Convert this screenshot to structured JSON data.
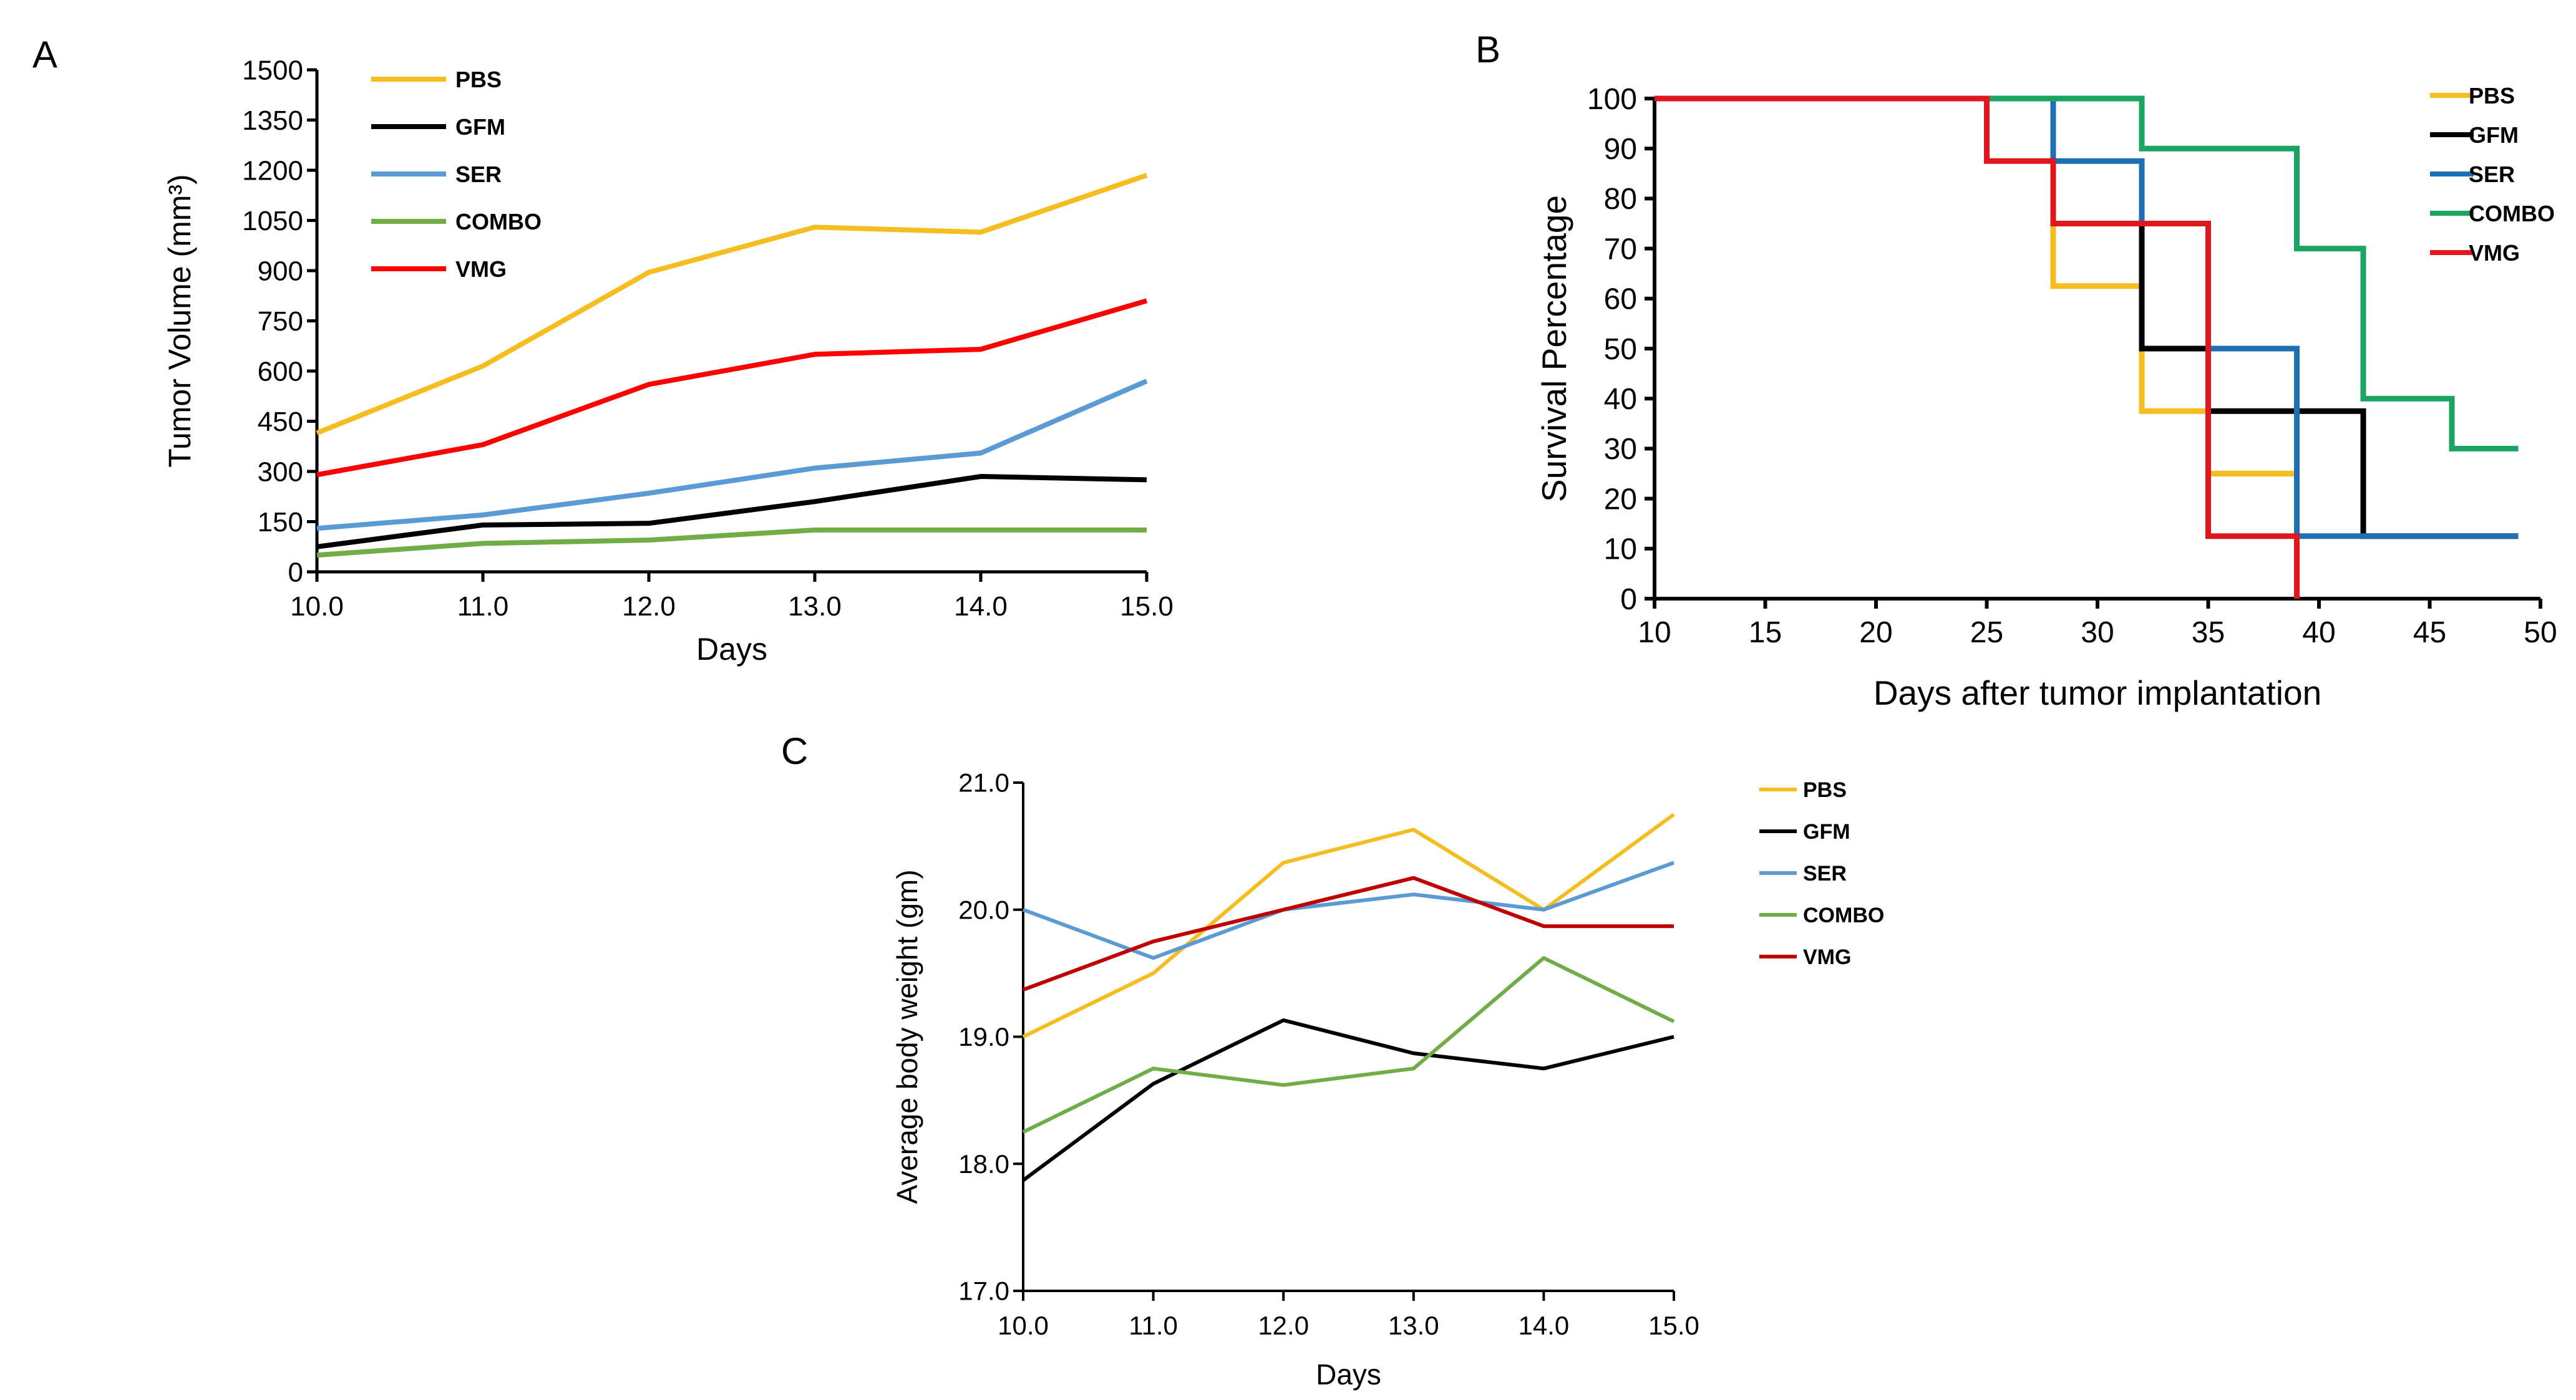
{
  "chart_data": [
    {
      "panel": "A",
      "type": "line",
      "xlabel": "Days",
      "ylabel": "Tumor Volume (mm³)",
      "xlim": [
        10,
        15
      ],
      "ylim": [
        0,
        1500
      ],
      "x_ticks": [
        "10.0",
        "11.0",
        "12.0",
        "13.0",
        "14.0",
        "15.0"
      ],
      "y_ticks": [
        "0",
        "150",
        "300",
        "450",
        "600",
        "750",
        "900",
        "1050",
        "1200",
        "1350",
        "1500"
      ],
      "x": [
        10,
        11,
        12,
        13,
        14,
        15
      ],
      "legend_position": "top-left",
      "grid": false,
      "series": [
        {
          "name": "PBS",
          "color": "#F5BD1F",
          "values": [
            415,
            615,
            895,
            1030,
            1015,
            1185
          ]
        },
        {
          "name": "GFM",
          "color": "#000000",
          "values": [
            75,
            140,
            145,
            210,
            285,
            275
          ]
        },
        {
          "name": "SER",
          "color": "#5B9BD5",
          "values": [
            130,
            170,
            235,
            310,
            355,
            570
          ]
        },
        {
          "name": "COMBO",
          "color": "#70AD47",
          "values": [
            50,
            85,
            95,
            125,
            125,
            125
          ]
        },
        {
          "name": "VMG",
          "color": "#FF0000",
          "values": [
            290,
            380,
            560,
            650,
            665,
            810
          ]
        }
      ]
    },
    {
      "panel": "B",
      "type": "line",
      "step": true,
      "xlabel": "Days after tumor implantation",
      "ylabel": "Survival Percentage",
      "xlim": [
        10,
        50
      ],
      "ylim": [
        0,
        100
      ],
      "x_ticks": [
        "10",
        "15",
        "20",
        "25",
        "30",
        "35",
        "40",
        "45",
        "50"
      ],
      "y_ticks": [
        "0",
        "10",
        "20",
        "30",
        "40",
        "50",
        "60",
        "70",
        "80",
        "90",
        "100"
      ],
      "legend_position": "top-right",
      "grid": false,
      "series": [
        {
          "name": "PBS",
          "color": "#F5BD1F",
          "x": [
            10,
            28,
            32,
            35,
            39
          ],
          "values": [
            100,
            62.5,
            37.5,
            25,
            0
          ]
        },
        {
          "name": "GFM",
          "color": "#000000",
          "x": [
            10,
            28,
            32,
            35,
            42,
            49
          ],
          "values": [
            100,
            75,
            50,
            37.5,
            12.5,
            12.5
          ]
        },
        {
          "name": "SER",
          "color": "#1F6FB5",
          "x": [
            10,
            28,
            32,
            35,
            39,
            49
          ],
          "values": [
            100,
            87.5,
            75,
            50,
            12.5,
            12.5
          ]
        },
        {
          "name": "COMBO",
          "color": "#1BA462",
          "x": [
            10,
            32,
            39,
            42,
            46,
            49
          ],
          "values": [
            100,
            90,
            70,
            40,
            30,
            30
          ]
        },
        {
          "name": "VMG",
          "color": "#E0181E",
          "x": [
            10,
            25,
            28,
            35,
            39
          ],
          "values": [
            100,
            87.5,
            75,
            12.5,
            0
          ]
        }
      ]
    },
    {
      "panel": "C",
      "type": "line",
      "xlabel": "Days",
      "ylabel": "Average body weight (gm)",
      "xlim": [
        10,
        15
      ],
      "ylim": [
        17,
        21
      ],
      "x_ticks": [
        "10.0",
        "11.0",
        "12.0",
        "13.0",
        "14.0",
        "15.0"
      ],
      "y_ticks": [
        "17.0",
        "18.0",
        "19.0",
        "20.0",
        "21.0"
      ],
      "x": [
        10,
        11,
        12,
        13,
        14,
        15
      ],
      "legend_position": "right",
      "grid": false,
      "series": [
        {
          "name": "PBS",
          "color": "#F5BD1F",
          "values": [
            19.0,
            19.5,
            20.37,
            20.63,
            20.0,
            20.75
          ]
        },
        {
          "name": "GFM",
          "color": "#000000",
          "values": [
            17.87,
            18.63,
            19.13,
            18.87,
            18.75,
            19.0
          ]
        },
        {
          "name": "SER",
          "color": "#5B9BD5",
          "values": [
            20.0,
            19.62,
            20.0,
            20.12,
            20.0,
            20.37
          ]
        },
        {
          "name": "COMBO",
          "color": "#70AD47",
          "values": [
            18.25,
            18.75,
            18.62,
            18.75,
            19.62,
            19.12
          ]
        },
        {
          "name": "VMG",
          "color": "#C00000",
          "values": [
            19.37,
            19.75,
            20.0,
            20.25,
            19.87,
            19.87
          ]
        }
      ]
    }
  ]
}
